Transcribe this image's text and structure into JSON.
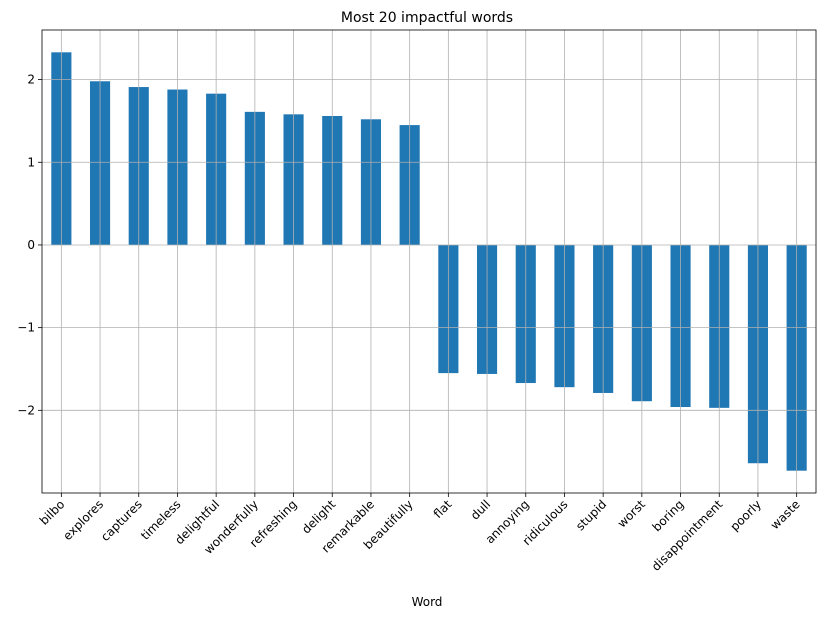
{
  "chart_data": {
    "type": "bar",
    "title": "Most 20 impactful words",
    "xlabel": "Word",
    "ylabel": "",
    "categories": [
      "bilbo",
      "explores",
      "captures",
      "timeless",
      "delightful",
      "wonderfully",
      "refreshing",
      "delight",
      "remarkable",
      "beautifully",
      "flat",
      "dull",
      "annoying",
      "ridiculous",
      "stupid",
      "worst",
      "boring",
      "disappointment",
      "poorly",
      "waste"
    ],
    "values": [
      2.33,
      1.98,
      1.91,
      1.88,
      1.83,
      1.61,
      1.58,
      1.56,
      1.52,
      1.45,
      -1.55,
      -1.56,
      -1.67,
      -1.72,
      -1.79,
      -1.89,
      -1.96,
      -1.97,
      -2.64,
      -2.73
    ],
    "ylim": [
      -3.0,
      2.6
    ],
    "yticks": [
      -2,
      -1,
      0,
      1,
      2
    ],
    "ytick_labels": [
      "−2",
      "−1",
      "0",
      "1",
      "2"
    ],
    "grid": true,
    "bar_color": "#1f77b4",
    "grid_color": "#b0b0b0"
  }
}
